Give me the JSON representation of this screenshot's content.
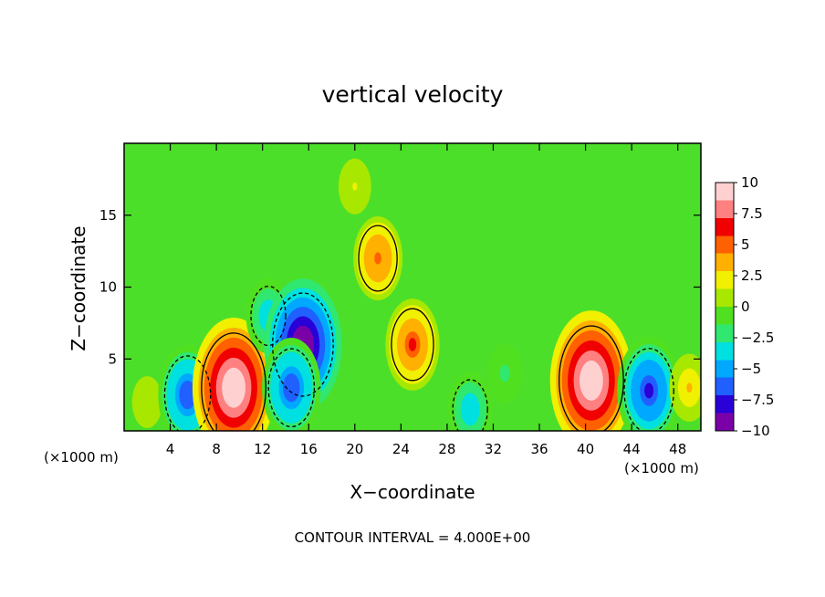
{
  "chart_data": {
    "type": "heatmap",
    "title": "vertical velocity",
    "xlabel": "X−coordinate",
    "ylabel": "Z−coordinate",
    "x_unit_left": "(×1000 m)",
    "x_unit_right": "(×1000 m)",
    "footer": "CONTOUR INTERVAL = 4.000E+00",
    "xlim": [
      0,
      50
    ],
    "ylim": [
      0,
      20
    ],
    "x_ticks": [
      4,
      8,
      12,
      16,
      20,
      24,
      28,
      32,
      36,
      40,
      44,
      48
    ],
    "x_tick_labels": [
      "4",
      "8",
      "12",
      "16",
      "20",
      "24",
      "28",
      "32",
      "36",
      "40",
      "44",
      "48"
    ],
    "y_ticks": [
      5,
      10,
      15
    ],
    "y_tick_labels": [
      "5",
      "10",
      "15"
    ],
    "colorbar": {
      "range": [
        -10,
        10
      ],
      "ticks": [
        10,
        7.5,
        5,
        2.5,
        0,
        -2.5,
        -5,
        -7.5,
        -10
      ],
      "tick_labels": [
        "10",
        "7.5",
        "5",
        "2.5",
        "0",
        "−2.5",
        "−5",
        "−7.5",
        "−10"
      ],
      "colors": [
        "#7a00a8",
        "#2a00d8",
        "#2060ff",
        "#00a8ff",
        "#00e0e0",
        "#30e870",
        "#50e020",
        "#a8e800",
        "#f0f000",
        "#ffb000",
        "#ff6000",
        "#f00000",
        "#ff8080",
        "#ffd0d0"
      ]
    },
    "features": [
      {
        "x": 2,
        "z": 2,
        "w": 1.0
      },
      {
        "x": 5.5,
        "z": 2.5,
        "w": -7
      },
      {
        "x": 9.5,
        "z": 3,
        "w": 12
      },
      {
        "x": 12.5,
        "z": 8,
        "w": -4
      },
      {
        "x": 15.5,
        "z": 6,
        "w": -11
      },
      {
        "x": 14.5,
        "z": 3,
        "w": -7
      },
      {
        "x": 22,
        "z": 12,
        "w": 5
      },
      {
        "x": 25,
        "z": 6,
        "w": 6
      },
      {
        "x": 30,
        "z": 1.5,
        "w": -4
      },
      {
        "x": 40.5,
        "z": 3.5,
        "w": 12
      },
      {
        "x": 45.5,
        "z": 2.8,
        "w": -8
      },
      {
        "x": 49,
        "z": 3,
        "w": 3
      },
      {
        "x": 20,
        "z": 17,
        "w": 1.5
      },
      {
        "x": 33,
        "z": 4,
        "w": -2
      }
    ]
  }
}
